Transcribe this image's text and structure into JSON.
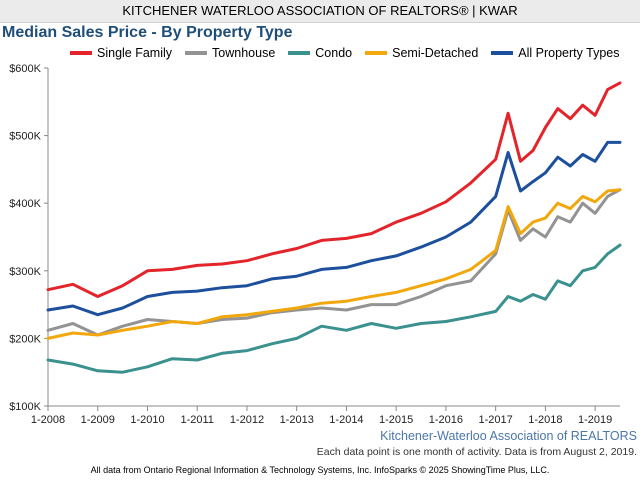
{
  "header": {
    "org": "KITCHENER WATERLOO ASSOCIATION OF REALTORS® | KWAR"
  },
  "chart_data": {
    "type": "line",
    "title": "Median Sales Price - By Property Type",
    "x_ticks": [
      "1-2008",
      "1-2009",
      "1-2010",
      "1-2011",
      "1-2012",
      "1-2013",
      "1-2014",
      "1-2015",
      "1-2016",
      "1-2017",
      "1-2018",
      "1-2019"
    ],
    "x_range": [
      "2008-01",
      "2019-07"
    ],
    "y_ticks": [
      "$100K",
      "$200K",
      "$300K",
      "$400K",
      "$500K",
      "$600K"
    ],
    "y_range": [
      100000,
      600000
    ],
    "grid": false,
    "legend_position": "top",
    "series": [
      {
        "name": "Single Family",
        "color": "#e3242b",
        "points": [
          [
            "2008-01",
            272000
          ],
          [
            "2008-07",
            280000
          ],
          [
            "2009-01",
            262000
          ],
          [
            "2009-07",
            278000
          ],
          [
            "2010-01",
            300000
          ],
          [
            "2010-07",
            302000
          ],
          [
            "2011-01",
            308000
          ],
          [
            "2011-07",
            310000
          ],
          [
            "2012-01",
            315000
          ],
          [
            "2012-07",
            325000
          ],
          [
            "2013-01",
            333000
          ],
          [
            "2013-07",
            345000
          ],
          [
            "2014-01",
            348000
          ],
          [
            "2014-07",
            355000
          ],
          [
            "2015-01",
            372000
          ],
          [
            "2015-07",
            385000
          ],
          [
            "2016-01",
            402000
          ],
          [
            "2016-07",
            430000
          ],
          [
            "2017-01",
            465000
          ],
          [
            "2017-04",
            533000
          ],
          [
            "2017-07",
            462000
          ],
          [
            "2017-10",
            478000
          ],
          [
            "2018-01",
            512000
          ],
          [
            "2018-04",
            540000
          ],
          [
            "2018-07",
            525000
          ],
          [
            "2018-10",
            545000
          ],
          [
            "2019-01",
            530000
          ],
          [
            "2019-04",
            568000
          ],
          [
            "2019-07",
            578000
          ]
        ]
      },
      {
        "name": "Townhouse",
        "color": "#939393",
        "points": [
          [
            "2008-01",
            212000
          ],
          [
            "2008-07",
            222000
          ],
          [
            "2009-01",
            205000
          ],
          [
            "2009-07",
            218000
          ],
          [
            "2010-01",
            228000
          ],
          [
            "2010-07",
            225000
          ],
          [
            "2011-01",
            222000
          ],
          [
            "2011-07",
            228000
          ],
          [
            "2012-01",
            230000
          ],
          [
            "2012-07",
            238000
          ],
          [
            "2013-01",
            242000
          ],
          [
            "2013-07",
            245000
          ],
          [
            "2014-01",
            242000
          ],
          [
            "2014-07",
            250000
          ],
          [
            "2015-01",
            250000
          ],
          [
            "2015-07",
            262000
          ],
          [
            "2016-01",
            278000
          ],
          [
            "2016-07",
            285000
          ],
          [
            "2017-01",
            325000
          ],
          [
            "2017-04",
            390000
          ],
          [
            "2017-07",
            345000
          ],
          [
            "2017-10",
            362000
          ],
          [
            "2018-01",
            350000
          ],
          [
            "2018-04",
            380000
          ],
          [
            "2018-07",
            372000
          ],
          [
            "2018-10",
            400000
          ],
          [
            "2019-01",
            385000
          ],
          [
            "2019-04",
            410000
          ],
          [
            "2019-07",
            420000
          ]
        ]
      },
      {
        "name": "Condo",
        "color": "#3a918e",
        "points": [
          [
            "2008-01",
            168000
          ],
          [
            "2008-07",
            162000
          ],
          [
            "2009-01",
            152000
          ],
          [
            "2009-07",
            150000
          ],
          [
            "2010-01",
            158000
          ],
          [
            "2010-07",
            170000
          ],
          [
            "2011-01",
            168000
          ],
          [
            "2011-07",
            178000
          ],
          [
            "2012-01",
            182000
          ],
          [
            "2012-07",
            192000
          ],
          [
            "2013-01",
            200000
          ],
          [
            "2013-07",
            218000
          ],
          [
            "2014-01",
            212000
          ],
          [
            "2014-07",
            222000
          ],
          [
            "2015-01",
            215000
          ],
          [
            "2015-07",
            222000
          ],
          [
            "2016-01",
            225000
          ],
          [
            "2016-07",
            232000
          ],
          [
            "2017-01",
            240000
          ],
          [
            "2017-04",
            262000
          ],
          [
            "2017-07",
            255000
          ],
          [
            "2017-10",
            265000
          ],
          [
            "2018-01",
            258000
          ],
          [
            "2018-04",
            285000
          ],
          [
            "2018-07",
            278000
          ],
          [
            "2018-10",
            300000
          ],
          [
            "2019-01",
            305000
          ],
          [
            "2019-04",
            325000
          ],
          [
            "2019-07",
            338000
          ]
        ]
      },
      {
        "name": "Semi-Detached",
        "color": "#f2a70c",
        "points": [
          [
            "2008-01",
            200000
          ],
          [
            "2008-07",
            208000
          ],
          [
            "2009-01",
            205000
          ],
          [
            "2009-07",
            212000
          ],
          [
            "2010-01",
            218000
          ],
          [
            "2010-07",
            225000
          ],
          [
            "2011-01",
            222000
          ],
          [
            "2011-07",
            232000
          ],
          [
            "2012-01",
            235000
          ],
          [
            "2012-07",
            240000
          ],
          [
            "2013-01",
            245000
          ],
          [
            "2013-07",
            252000
          ],
          [
            "2014-01",
            255000
          ],
          [
            "2014-07",
            262000
          ],
          [
            "2015-01",
            268000
          ],
          [
            "2015-07",
            278000
          ],
          [
            "2016-01",
            288000
          ],
          [
            "2016-07",
            302000
          ],
          [
            "2017-01",
            330000
          ],
          [
            "2017-04",
            395000
          ],
          [
            "2017-07",
            355000
          ],
          [
            "2017-10",
            372000
          ],
          [
            "2018-01",
            378000
          ],
          [
            "2018-04",
            400000
          ],
          [
            "2018-07",
            392000
          ],
          [
            "2018-10",
            410000
          ],
          [
            "2019-01",
            402000
          ],
          [
            "2019-04",
            418000
          ],
          [
            "2019-07",
            420000
          ]
        ]
      },
      {
        "name": "All Property Types",
        "color": "#1c4f9c",
        "points": [
          [
            "2008-01",
            242000
          ],
          [
            "2008-07",
            248000
          ],
          [
            "2009-01",
            235000
          ],
          [
            "2009-07",
            245000
          ],
          [
            "2010-01",
            262000
          ],
          [
            "2010-07",
            268000
          ],
          [
            "2011-01",
            270000
          ],
          [
            "2011-07",
            275000
          ],
          [
            "2012-01",
            278000
          ],
          [
            "2012-07",
            288000
          ],
          [
            "2013-01",
            292000
          ],
          [
            "2013-07",
            302000
          ],
          [
            "2014-01",
            305000
          ],
          [
            "2014-07",
            315000
          ],
          [
            "2015-01",
            322000
          ],
          [
            "2015-07",
            335000
          ],
          [
            "2016-01",
            350000
          ],
          [
            "2016-07",
            372000
          ],
          [
            "2017-01",
            410000
          ],
          [
            "2017-04",
            475000
          ],
          [
            "2017-07",
            418000
          ],
          [
            "2017-10",
            432000
          ],
          [
            "2018-01",
            445000
          ],
          [
            "2018-04",
            468000
          ],
          [
            "2018-07",
            455000
          ],
          [
            "2018-10",
            472000
          ],
          [
            "2019-01",
            462000
          ],
          [
            "2019-04",
            490000
          ],
          [
            "2019-07",
            490000
          ]
        ]
      }
    ]
  },
  "source_credit": "Kitchener-Waterloo Association of REALTORS",
  "note": "Each data point is one month of activity. Data is from August 2, 2019.",
  "footer": "All data from Ontario Regional Information & Technology Systems, Inc. InfoSparks © 2025 ShowingTime Plus, LLC."
}
